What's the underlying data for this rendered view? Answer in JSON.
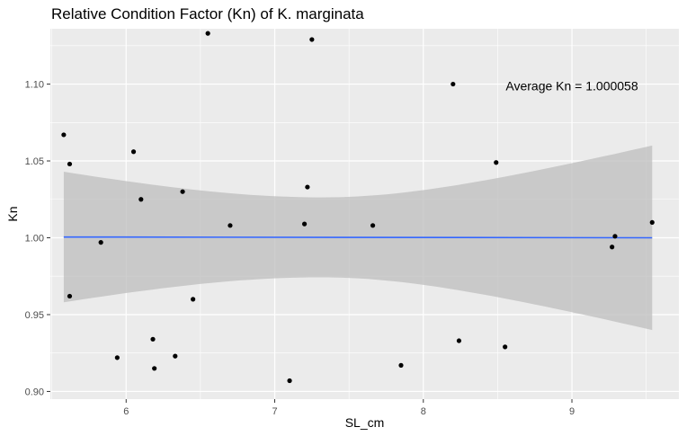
{
  "chart_data": {
    "type": "scatter",
    "title": "Relative Condition Factor (Kn) of K. marginata",
    "xlabel": "SL_cm",
    "ylabel": "Kn",
    "xlim": [
      5.49,
      9.72
    ],
    "ylim": [
      0.895,
      1.136
    ],
    "x_ticks": [
      6,
      7,
      8,
      9
    ],
    "y_ticks": [
      0.9,
      0.95,
      1.0,
      1.05,
      1.1
    ],
    "y_tick_labels": [
      "0.90",
      "0.95",
      "1.00",
      "1.05",
      "1.10"
    ],
    "grid": true,
    "annotation": {
      "text": "Average Kn = 1.000058",
      "x": 9.0,
      "y": 1.099
    },
    "points": [
      {
        "x": 5.58,
        "y": 1.067
      },
      {
        "x": 5.62,
        "y": 1.048
      },
      {
        "x": 5.62,
        "y": 0.962
      },
      {
        "x": 5.83,
        "y": 0.997
      },
      {
        "x": 5.94,
        "y": 0.922
      },
      {
        "x": 6.05,
        "y": 1.056
      },
      {
        "x": 6.1,
        "y": 1.025
      },
      {
        "x": 6.18,
        "y": 0.934
      },
      {
        "x": 6.19,
        "y": 0.915
      },
      {
        "x": 6.33,
        "y": 0.923
      },
      {
        "x": 6.38,
        "y": 1.03
      },
      {
        "x": 6.45,
        "y": 0.96
      },
      {
        "x": 6.55,
        "y": 1.133
      },
      {
        "x": 6.7,
        "y": 1.008
      },
      {
        "x": 7.1,
        "y": 0.907
      },
      {
        "x": 7.2,
        "y": 1.009
      },
      {
        "x": 7.22,
        "y": 1.033
      },
      {
        "x": 7.25,
        "y": 1.129
      },
      {
        "x": 7.66,
        "y": 1.008
      },
      {
        "x": 7.85,
        "y": 0.917
      },
      {
        "x": 8.2,
        "y": 1.1
      },
      {
        "x": 8.24,
        "y": 0.933
      },
      {
        "x": 8.49,
        "y": 1.049
      },
      {
        "x": 8.55,
        "y": 0.929
      },
      {
        "x": 9.27,
        "y": 0.994
      },
      {
        "x": 9.29,
        "y": 1.001
      },
      {
        "x": 9.54,
        "y": 1.01
      }
    ],
    "fit": {
      "method": "linear",
      "x": [
        5.58,
        9.54
      ],
      "y": [
        1.0005,
        1.0
      ],
      "band_lower": [
        0.958,
        0.94
      ],
      "band_upper": [
        1.043,
        1.06
      ]
    },
    "colors": {
      "panel_bg": "#ebebeb",
      "grid": "#ffffff",
      "point": "#000000",
      "fit_line": "#3366ff",
      "band": "#bebebe"
    }
  }
}
